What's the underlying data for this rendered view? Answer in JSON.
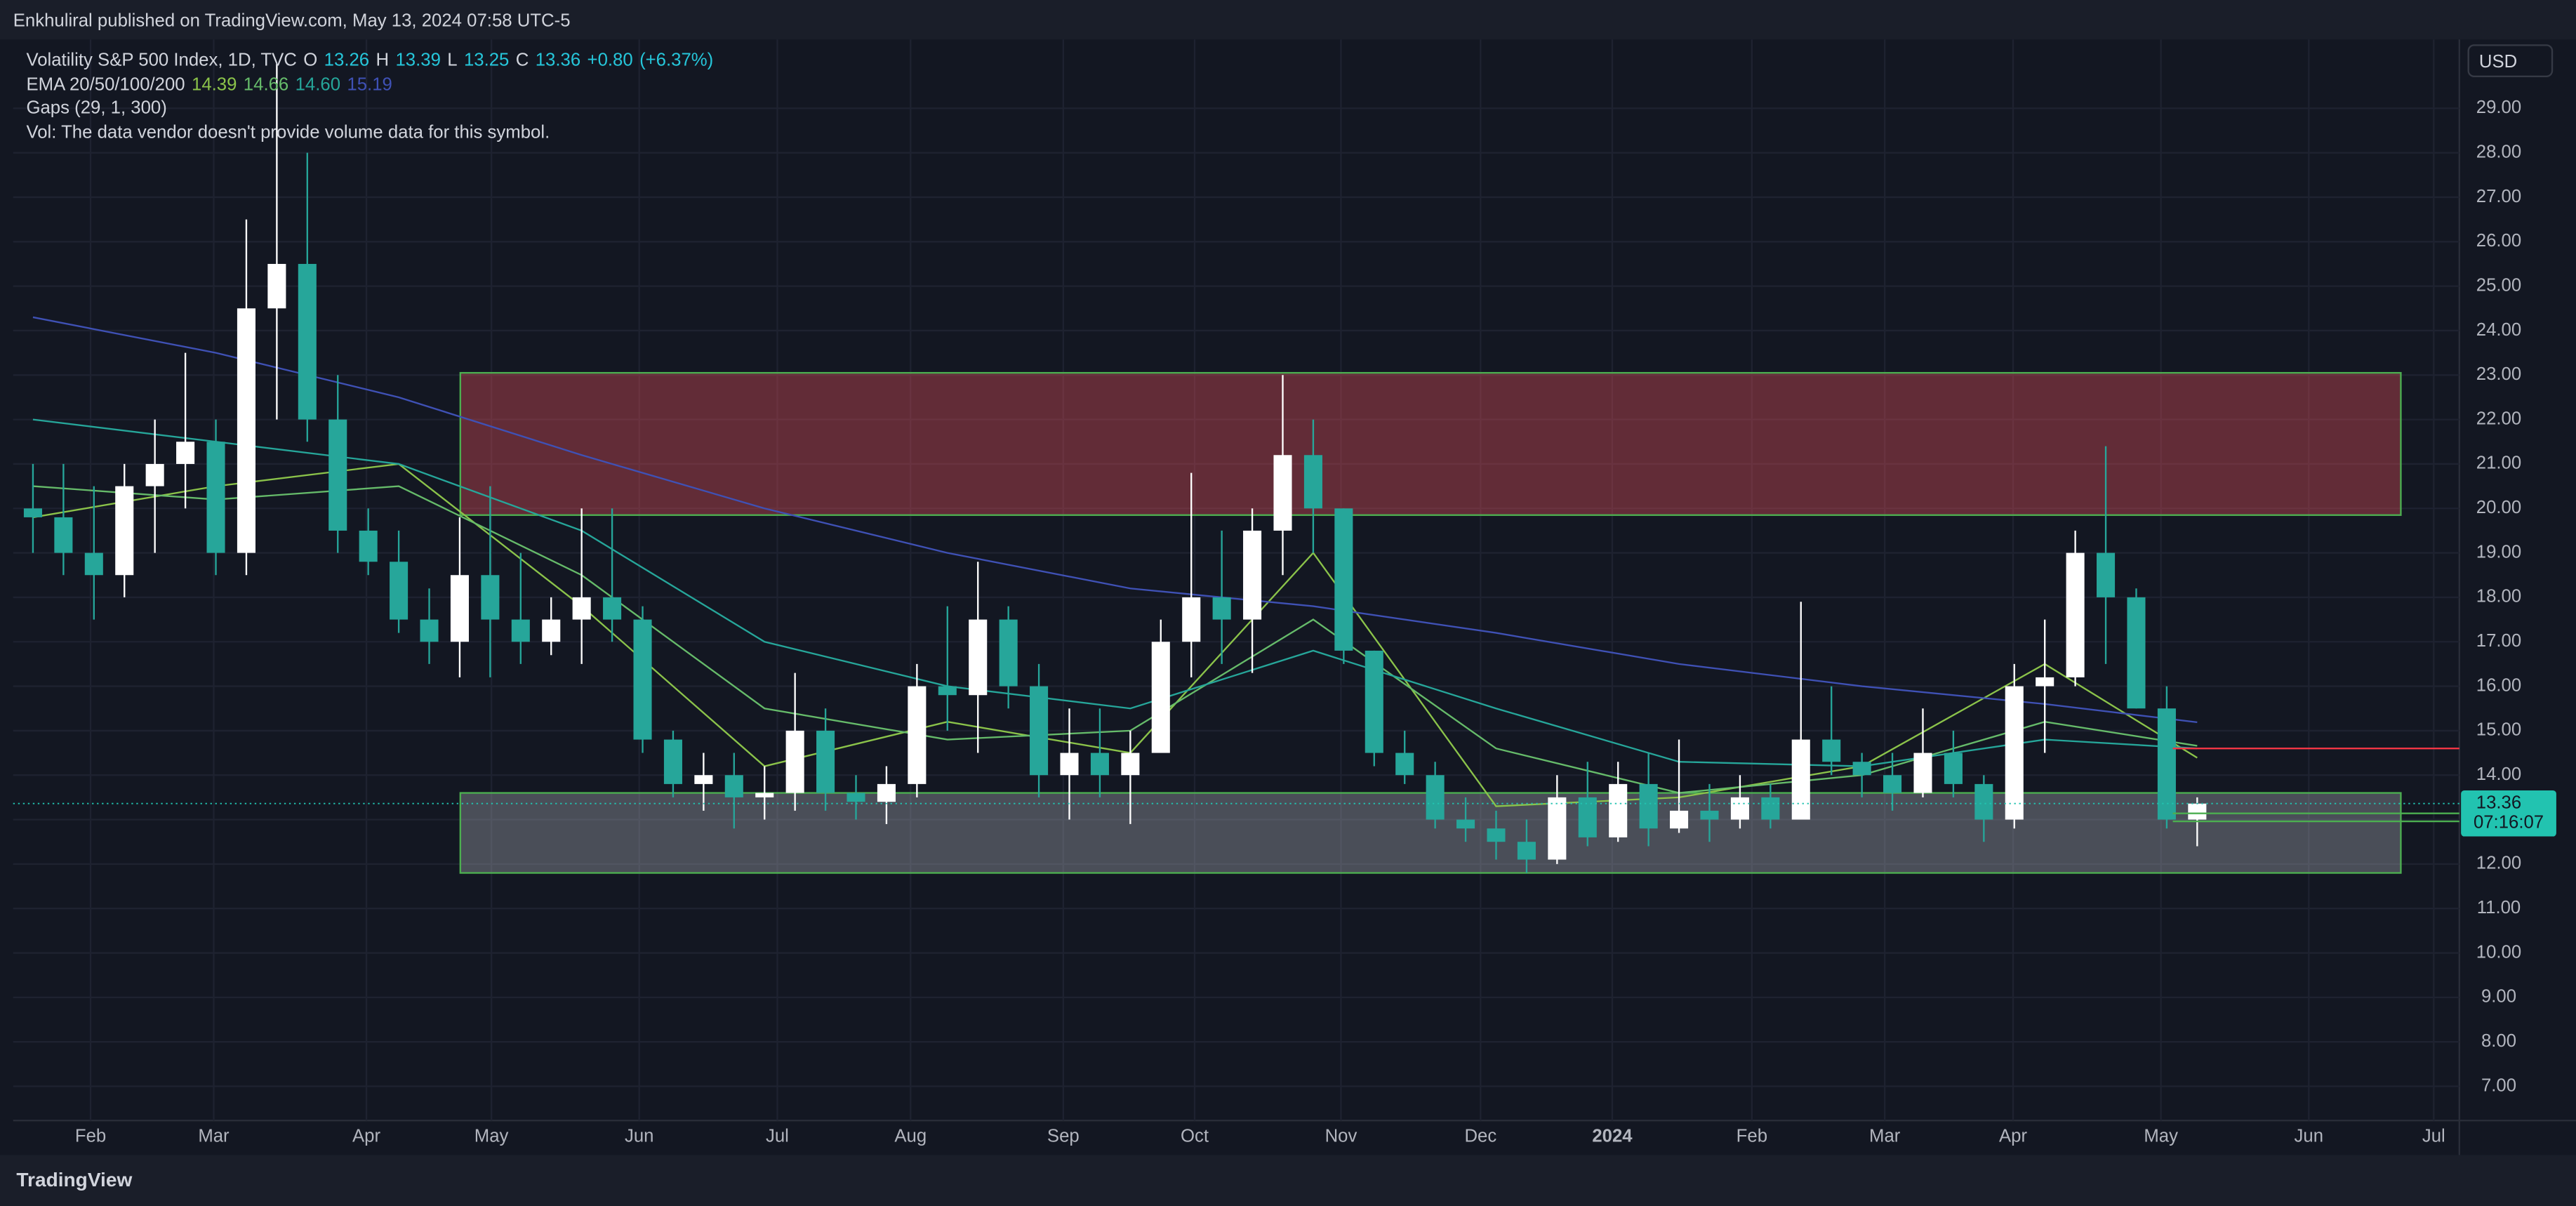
{
  "chart_data": {
    "type": "candlestick",
    "header": "Enkhuliral published on TradingView.com, May 13, 2024 07:58 UTC-5",
    "title": "Volatility S&P 500 Index, 1D, TVC",
    "ohlc_legend": [
      {
        "label": "O",
        "value": 13.26
      },
      {
        "label": "H",
        "value": 13.39
      },
      {
        "label": "L",
        "value": 13.25
      },
      {
        "label": "C",
        "value": 13.36
      }
    ],
    "change": {
      "value": 0.8,
      "label": "+0.80"
    },
    "change_pct": {
      "value": 6.37,
      "label": "(+6.37%)"
    },
    "ema_label": "EMA 20/50/100/200",
    "ema_legend": [
      14.39,
      14.66,
      {
        "value": 14.6,
        "label": "14.60"
      },
      15.19
    ],
    "gaps_label": "Gaps (29, 1, 300)",
    "volume_note": "Vol: The data vendor doesn't provide volume data for this symbol.",
    "currency": "USD",
    "brand": "TradingView",
    "up_color": "#ffffff",
    "down_color": "#26a69a",
    "categories": [
      null,
      null,
      null,
      null,
      null,
      null,
      null,
      null,
      null,
      null,
      null,
      null,
      null,
      null,
      null,
      null,
      null,
      null,
      null,
      null,
      null,
      null,
      null,
      null,
      null,
      null,
      null,
      null,
      null,
      null,
      null,
      null,
      null,
      null,
      null,
      null,
      null,
      null,
      null,
      null,
      null,
      null,
      null,
      null,
      null,
      null,
      null,
      null,
      null,
      null,
      null,
      null,
      null,
      null,
      null,
      null,
      null,
      null,
      null,
      null,
      null,
      null,
      null,
      null,
      null,
      null,
      null,
      null,
      null,
      null,
      null,
      null
    ],
    "open": [
      20,
      19.8,
      19,
      18.5,
      20.5,
      21,
      21.5,
      19,
      24.5,
      25.5,
      22,
      19.5,
      18.8,
      17.5,
      17,
      18.5,
      17.5,
      17,
      17.5,
      18,
      17.5,
      14.8,
      13.8,
      14,
      13.5,
      13.6,
      15,
      13.6,
      13.4,
      13.8,
      16,
      15.8,
      17.5,
      16,
      14,
      14.5,
      14,
      14.5,
      17,
      18,
      17.5,
      19.5,
      21.2,
      20,
      16.8,
      14.5,
      14,
      13,
      12.8,
      12.5,
      12.1,
      13.5,
      12.6,
      13.8,
      12.8,
      13.2,
      13,
      13.5,
      13,
      14.8,
      14.3,
      14,
      13.6,
      14.5,
      13.8,
      13,
      16,
      16.2,
      19,
      18,
      15.5,
      13
    ],
    "high": [
      21,
      21,
      20.5,
      21,
      22,
      23.5,
      22,
      26.5,
      30,
      28,
      23,
      20,
      19.5,
      18.2,
      19.8,
      20.5,
      19,
      18,
      20,
      20,
      17.8,
      15,
      14.5,
      14.5,
      14.2,
      16.3,
      15.5,
      14,
      14.2,
      16.5,
      17.8,
      18.8,
      17.8,
      16.5,
      15.5,
      15.5,
      15,
      17.5,
      20.8,
      19.5,
      20,
      23,
      22,
      20,
      16.8,
      15,
      14.3,
      13.5,
      13.2,
      13,
      14,
      14.3,
      14.3,
      14.5,
      14.8,
      13.8,
      14,
      13.8,
      17.9,
      16,
      14.5,
      14.5,
      15.5,
      15,
      14,
      16.5,
      17.5,
      19.5,
      21.4,
      18.2,
      16,
      13.5
    ],
    "low": [
      19,
      18.5,
      17.5,
      18,
      19,
      20,
      18.5,
      18.5,
      22,
      21.5,
      19,
      18.5,
      17.2,
      16.5,
      16.2,
      16.2,
      16.5,
      16.7,
      16.5,
      17,
      14.5,
      13.5,
      13.2,
      12.8,
      13,
      13.2,
      13.2,
      13,
      12.9,
      13.5,
      15,
      14.5,
      15.5,
      13.5,
      13,
      13.5,
      12.9,
      14.5,
      16.2,
      16.5,
      16.3,
      18.5,
      19,
      16.5,
      14.2,
      13.8,
      12.8,
      12.5,
      12.1,
      11.8,
      12,
      12.4,
      12.5,
      12.4,
      12.7,
      12.5,
      12.8,
      12.8,
      13,
      14,
      13.5,
      13.2,
      13.5,
      13.5,
      12.5,
      12.8,
      14.5,
      16,
      16.5,
      15.5,
      12.8,
      12.4
    ],
    "close": [
      19.8,
      19,
      18.5,
      20.5,
      21,
      21.5,
      19,
      24.5,
      25.5,
      22,
      19.5,
      18.8,
      17.5,
      17,
      18.5,
      17.5,
      17,
      17.5,
      18,
      17.5,
      14.8,
      13.8,
      14,
      13.5,
      13.6,
      15,
      13.6,
      13.4,
      13.8,
      16,
      15.8,
      17.5,
      16,
      14,
      14.5,
      14,
      14.5,
      17,
      18,
      17.5,
      19.5,
      21.2,
      20,
      16.8,
      14.5,
      14,
      13,
      12.8,
      12.5,
      12.1,
      13.5,
      12.6,
      13.8,
      12.8,
      13.2,
      13,
      13.5,
      13,
      14.8,
      14.3,
      14,
      13.6,
      14.5,
      13.8,
      13,
      16,
      16.2,
      19,
      18,
      15.5,
      13,
      13.36
    ],
    "ema_series": [
      {
        "color": "#8bc34a",
        "x": [
          0,
          6,
          12,
          18,
          24,
          30,
          36,
          42,
          48,
          54,
          60,
          66,
          71
        ],
        "values": [
          19.8,
          20.5,
          21,
          17.8,
          14.2,
          15.2,
          14.5,
          19,
          13.3,
          13.5,
          14.2,
          16.5,
          14.39
        ]
      },
      {
        "color": "#66bb6a",
        "x": [
          0,
          6,
          12,
          18,
          24,
          30,
          36,
          42,
          48,
          54,
          60,
          66,
          71
        ],
        "values": [
          20.5,
          20.2,
          20.5,
          18.5,
          15.5,
          14.8,
          15,
          17.5,
          14.6,
          13.6,
          14,
          15.2,
          14.66
        ]
      },
      {
        "color": "#26a69a",
        "x": [
          0,
          6,
          12,
          18,
          24,
          30,
          36,
          42,
          48,
          54,
          60,
          66,
          71
        ],
        "values": [
          22,
          21.5,
          21,
          19.5,
          17,
          16,
          15.5,
          16.8,
          15.5,
          14.3,
          14.2,
          14.8,
          14.6
        ]
      },
      {
        "color": "#3f51b5",
        "x": [
          0,
          6,
          12,
          18,
          24,
          30,
          36,
          42,
          48,
          54,
          60,
          66,
          71
        ],
        "values": [
          24.3,
          23.5,
          22.5,
          21.2,
          20,
          19,
          18.2,
          17.8,
          17.2,
          16.5,
          16,
          15.6,
          15.19
        ]
      }
    ],
    "zones": [
      {
        "x": [
          14.02,
          77.68
        ],
        "y": [
          19.85,
          23.05
        ],
        "color": "#f7525f"
      },
      {
        "x": [
          14.02,
          77.68
        ],
        "y": [
          11.8,
          13.6
        ],
        "color": "#b2b5be"
      }
    ],
    "levels": [
      {
        "value": 14.6,
        "from": 70.2,
        "color": "#f23645"
      },
      {
        "value": 13.14,
        "from": 70.2,
        "color": "#4caf50"
      },
      {
        "value": 12.96,
        "from": 70.2,
        "color": "#4caf50"
      }
    ],
    "price_badge": {
      "value": 13.36,
      "label": "13.36",
      "countdown": "07:16:07",
      "color": "#22c3b0"
    },
    "xlim": [
      -0.65,
      79.6
    ],
    "xticks": [
      {
        "value": 1.89,
        "label": "Feb"
      },
      {
        "value": 5.93,
        "label": "Mar"
      },
      {
        "value": 10.94,
        "label": "Apr"
      },
      {
        "value": 15.04,
        "label": "May"
      },
      {
        "value": 19.89,
        "label": "Jun"
      },
      {
        "value": 24.42,
        "label": "Jul"
      },
      {
        "value": 28.79,
        "label": "Aug"
      },
      {
        "value": 33.8,
        "label": "Sep"
      },
      {
        "value": 38.11,
        "label": "Oct"
      },
      {
        "value": 42.91,
        "label": "Nov"
      },
      {
        "value": 47.49,
        "label": "Dec"
      },
      {
        "value": 51.81,
        "label": "2024"
      },
      {
        "value": 56.39,
        "label": "Feb"
      },
      {
        "value": 60.75,
        "label": "Mar"
      },
      {
        "value": 64.96,
        "label": "Apr"
      },
      {
        "value": 69.81,
        "label": "May"
      },
      {
        "value": 74.66,
        "label": "Jun"
      },
      {
        "value": 78.76,
        "label": "Jul"
      }
    ],
    "ylim": [
      6.23,
      30.55
    ],
    "yticks": [
      {
        "value": 7,
        "label": "7.00"
      },
      {
        "value": 8,
        "label": "8.00"
      },
      {
        "value": 9,
        "label": "9.00"
      },
      {
        "value": 10,
        "label": "10.00"
      },
      {
        "value": 11,
        "label": "11.00"
      },
      {
        "value": 12,
        "label": "12.00"
      },
      {
        "value": 13,
        "label": "13.00"
      },
      {
        "value": 14,
        "label": "14.00"
      },
      {
        "value": 15,
        "label": "15.00"
      },
      {
        "value": 16,
        "label": "16.00"
      },
      {
        "value": 17,
        "label": "17.00"
      },
      {
        "value": 18,
        "label": "18.00"
      },
      {
        "value": 19,
        "label": "19.00"
      },
      {
        "value": 20,
        "label": "20.00"
      },
      {
        "value": 21,
        "label": "21.00"
      },
      {
        "value": 22,
        "label": "22.00"
      },
      {
        "value": 23,
        "label": "23.00"
      },
      {
        "value": 24,
        "label": "24.00"
      },
      {
        "value": 25,
        "label": "25.00"
      },
      {
        "value": 26,
        "label": "26.00"
      },
      {
        "value": 27,
        "label": "27.00"
      },
      {
        "value": 28,
        "label": "28.00"
      },
      {
        "value": 29,
        "label": "29.00"
      }
    ],
    "grid": true
  }
}
